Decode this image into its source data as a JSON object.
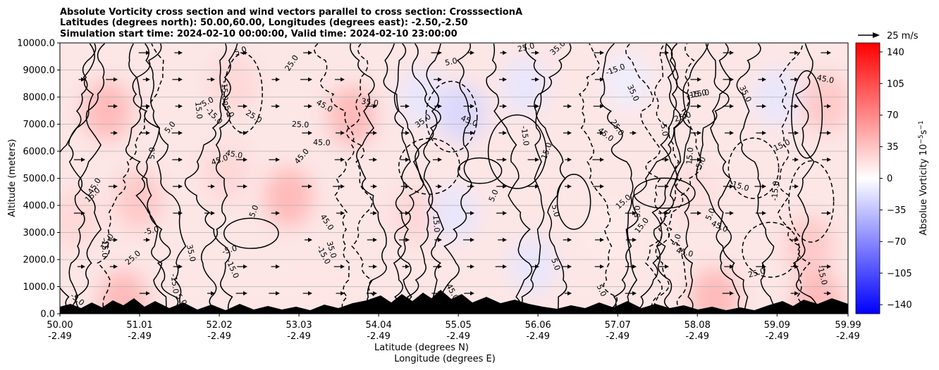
{
  "chart_data": {
    "type": "heatmap",
    "title_lines": [
      "Absolute Vorticity cross section and wind vectors parallel to cross section: CrosssectionA",
      "Latitudes (degrees north): 50.00,60.00, Longitudes (degrees east): -2.50,-2.50",
      "Simulation start time: 2024-02-10 00:00:00, Valid time: 2024-02-10 23:00:00"
    ],
    "ylabel": "Altitude (meters)",
    "xlabel_lines": [
      "Latitude (degrees N)",
      "Longitude (degrees E)"
    ],
    "ylim": [
      0,
      10000
    ],
    "xlim": [
      50.0,
      59.99
    ],
    "y_ticks": [
      "0.0",
      "1000.0",
      "2000.0",
      "3000.0",
      "4000.0",
      "5000.0",
      "6000.0",
      "7000.0",
      "8000.0",
      "9000.0",
      "10000.0"
    ],
    "x_ticks": [
      {
        "lat": "50.00",
        "lon": "-2.49"
      },
      {
        "lat": "51.01",
        "lon": "-2.49"
      },
      {
        "lat": "52.02",
        "lon": "-2.49"
      },
      {
        "lat": "53.03",
        "lon": "-2.49"
      },
      {
        "lat": "54.04",
        "lon": "-2.49"
      },
      {
        "lat": "55.05",
        "lon": "-2.49"
      },
      {
        "lat": "56.06",
        "lon": "-2.49"
      },
      {
        "lat": "57.07",
        "lon": "-2.49"
      },
      {
        "lat": "58.08",
        "lon": "-2.49"
      },
      {
        "lat": "59.09",
        "lon": "-2.49"
      },
      {
        "lat": "59.99",
        "lon": "-2.49"
      }
    ],
    "colorbar": {
      "label": "Absolue Vorticity 10",
      "label_exp": "−5",
      "label_unit": "s",
      "label_unit_exp": "−1",
      "ticks": [
        "140",
        "105",
        "70",
        "35",
        "0",
        "−35",
        "−70",
        "−105",
        "−140"
      ],
      "range": [
        -150,
        150
      ],
      "colormap": "bwr",
      "color_low": "#0000ff",
      "color_mid": "#ffffff",
      "color_high": "#ff0000"
    },
    "quiver_key": "25 m/s",
    "grid": "horizontal",
    "contour_labels": [
      "5.0",
      "15.0",
      "25.0",
      "35.0",
      "45.0",
      "-5.0",
      "-15.0"
    ],
    "vorticity_field": [
      {
        "lat": 50.6,
        "alt": 7500,
        "value": 45
      },
      {
        "lat": 50.2,
        "alt": 3500,
        "value": 25
      },
      {
        "lat": 51.0,
        "alt": 4200,
        "value": 35
      },
      {
        "lat": 50.8,
        "alt": 500,
        "value": 45
      },
      {
        "lat": 52.2,
        "alt": 8500,
        "value": 25
      },
      {
        "lat": 52.1,
        "alt": 5200,
        "value": 25
      },
      {
        "lat": 52.9,
        "alt": 4300,
        "value": 45
      },
      {
        "lat": 53.7,
        "alt": 7300,
        "value": 45
      },
      {
        "lat": 54.5,
        "alt": 3700,
        "value": 25
      },
      {
        "lat": 54.6,
        "alt": 8000,
        "value": -15
      },
      {
        "lat": 55.1,
        "alt": 7400,
        "value": -25
      },
      {
        "lat": 55.0,
        "alt": 3700,
        "value": -15
      },
      {
        "lat": 55.9,
        "alt": 8400,
        "value": -15
      },
      {
        "lat": 56.0,
        "alt": 1800,
        "value": -15
      },
      {
        "lat": 57.2,
        "alt": 8600,
        "value": -10
      },
      {
        "lat": 58.0,
        "alt": 4500,
        "value": 20
      },
      {
        "lat": 58.3,
        "alt": 600,
        "value": 45
      },
      {
        "lat": 59.5,
        "alt": 2500,
        "value": 35
      },
      {
        "lat": 59.1,
        "alt": 8000,
        "value": -15
      },
      {
        "lat": 59.7,
        "alt": 7800,
        "value": 35
      },
      {
        "lat": 59.6,
        "alt": 500,
        "value": 45
      },
      {
        "lat": 57.0,
        "alt": 3000,
        "value": 12
      },
      {
        "lat": 53.3,
        "alt": 1300,
        "value": 15
      }
    ]
  }
}
